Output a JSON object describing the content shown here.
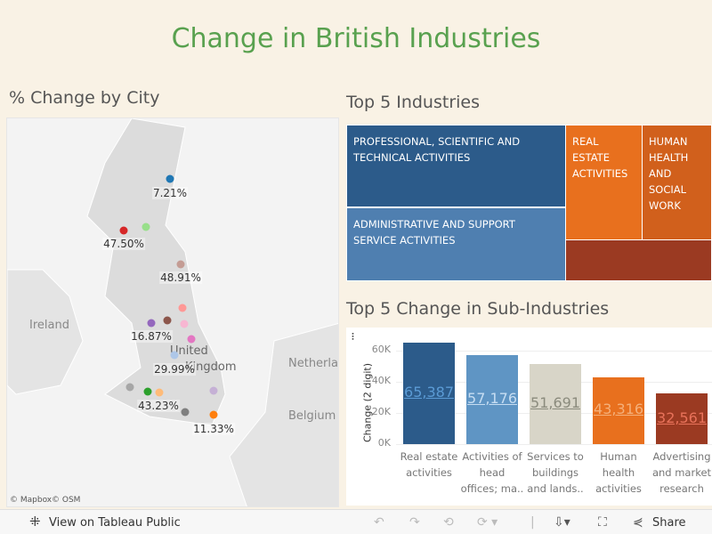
{
  "title": "Change in British Industries",
  "map": {
    "title": "% Change by City",
    "attribution": [
      "© Mapbox",
      "© OSM"
    ],
    "places": [
      "Ireland",
      "United",
      "Kingdom",
      "Netherla",
      "Belgium"
    ],
    "labels": [
      "7.21%",
      "47.50%",
      "48.91%",
      "16.87%",
      "29.99%",
      "43.23%",
      "11.33%"
    ],
    "dot_colors": [
      "#1f77b4",
      "#98df8a",
      "#d62728",
      "#c49c94",
      "#ff9896",
      "#9467bd",
      "#8c564b",
      "#f7b6d2",
      "#e377c2",
      "#aec7e8",
      "#a6a6a6",
      "#2ca02c",
      "#ffbb78",
      "#c5b0d5",
      "#7f7f7f",
      "#ff7f0e"
    ]
  },
  "treemap": {
    "title": "Top 5 Industries",
    "cells": [
      {
        "label": "PROFESSIONAL, SCIENTIFIC AND TECHNICAL ACTIVITIES",
        "color": "#2c5b8a"
      },
      {
        "label": "ADMINISTRATIVE AND SUPPORT SERVICE ACTIVITIES",
        "color": "#4f7fb0"
      },
      {
        "label": "REAL ESTATE ACTIVITIES",
        "color": "#e8701e"
      },
      {
        "label": "HUMAN HEALTH AND SOCIAL WORK",
        "color": "#d1601c"
      },
      {
        "label": "",
        "color": "#9b3a22"
      }
    ]
  },
  "chart_data": {
    "type": "bar",
    "title": "Top 5 Change in Sub-Industries",
    "ylabel": "Change (2 digit)",
    "ylim": [
      0,
      70000
    ],
    "yticks": [
      "0K",
      "20K",
      "40K",
      "60K"
    ],
    "categories": [
      [
        "Real estate",
        "activities"
      ],
      [
        "Activities of",
        "head",
        "offices; ma.."
      ],
      [
        "Services to",
        "buildings",
        "and lands.."
      ],
      [
        "Human",
        "health",
        "activities"
      ],
      [
        "Advertising",
        "and market",
        "research"
      ]
    ],
    "values": [
      65387,
      57176,
      51691,
      43316,
      32561
    ],
    "value_labels": [
      "65,387",
      "57,176",
      "51,691",
      "43,316",
      "32,561"
    ],
    "colors": [
      "#2c5b8a",
      "#5f95c4",
      "#d8d5c8",
      "#e8701e",
      "#9b3a22"
    ],
    "label_colors": [
      "#5b9bd5",
      "#c6ddf2",
      "#8b8b7d",
      "#f5b07a",
      "#e8725a"
    ]
  },
  "toolbar": {
    "view_label": "View on Tableau Public",
    "share_label": "Share"
  }
}
